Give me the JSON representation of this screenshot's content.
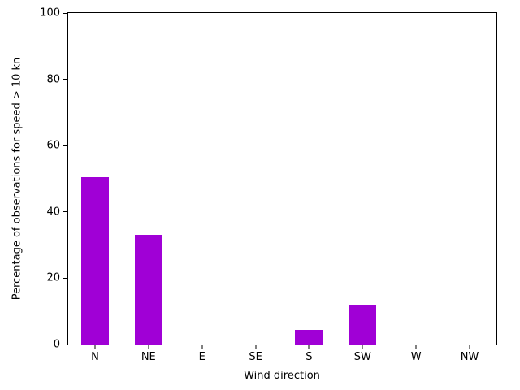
{
  "chart_data": {
    "type": "bar",
    "categories": [
      "N",
      "NE",
      "E",
      "SE",
      "S",
      "SW",
      "W",
      "NW"
    ],
    "values": [
      50.5,
      33,
      0,
      0,
      4.5,
      12,
      0,
      0
    ],
    "title": "",
    "xlabel": "Wind direction",
    "ylabel": "Percentage of observations for speed > 10 kn",
    "ylim": [
      0,
      100
    ],
    "yticks": [
      0,
      20,
      40,
      60,
      80,
      100
    ],
    "bar_color": "#a000d6",
    "axis_color": "#000000",
    "grid": false,
    "legend": null
  }
}
